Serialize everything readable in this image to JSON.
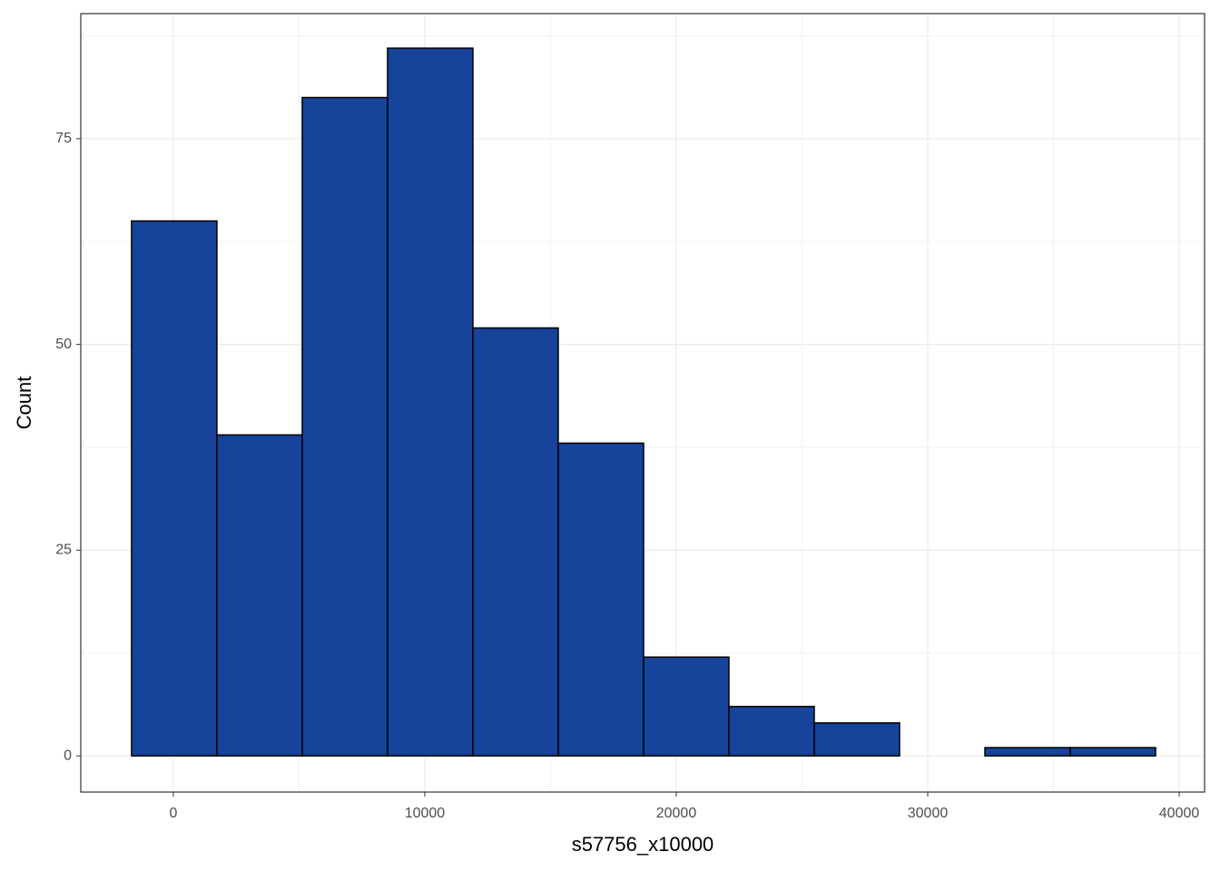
{
  "chart_data": {
    "type": "histogram",
    "x_label": "s57756_x10000",
    "y_label": "Count",
    "bins": [
      -1660,
      1733,
      5127,
      8520,
      11914,
      15307,
      18701,
      22094,
      25488,
      28881,
      32275,
      35668,
      39062
    ],
    "counts": [
      65,
      39,
      80,
      86,
      52,
      38,
      12,
      6,
      4,
      0,
      1,
      1
    ],
    "color": "#17439a",
    "edgecolor": "#000000",
    "xlim": [
      -3680,
      41010
    ],
    "ylim": [
      -4.4,
      90.2
    ],
    "xticks": [
      0,
      10000,
      20000,
      30000,
      40000
    ],
    "yticks": [
      0,
      25,
      50,
      75
    ],
    "grid": true
  }
}
